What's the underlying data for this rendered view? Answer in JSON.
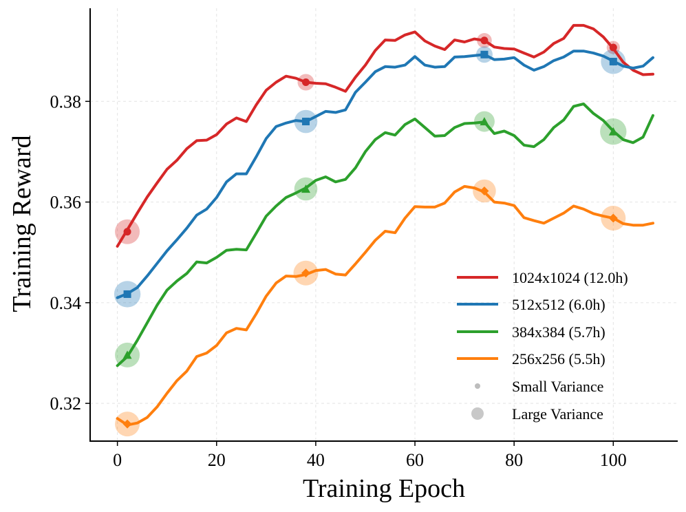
{
  "chart_data": {
    "type": "line",
    "xlabel": "Training Epoch",
    "ylabel": "Training Reward",
    "xlim": [
      -5.5,
      113
    ],
    "ylim": [
      0.3125,
      0.3985
    ],
    "xticks": [
      0,
      20,
      40,
      60,
      80,
      100
    ],
    "yticks": [
      0.32,
      0.34,
      0.36,
      0.38
    ],
    "xtick_labels": [
      "0",
      "20",
      "40",
      "60",
      "80",
      "100"
    ],
    "ytick_labels": [
      "0.32",
      "0.34",
      "0.36",
      "0.38"
    ],
    "grid": true,
    "legend_position": "lower-right",
    "series": [
      {
        "name": "1024x1024 (12.0h)",
        "color": "#d62728",
        "marker": "circle",
        "x": [
          0,
          2,
          4,
          6,
          8,
          10,
          12,
          14,
          16,
          18,
          20,
          22,
          24,
          26,
          28,
          30,
          32,
          34,
          36,
          38,
          40,
          42,
          44,
          46,
          48,
          50,
          52,
          54,
          56,
          58,
          60,
          62,
          64,
          66,
          68,
          70,
          72,
          74,
          76,
          78,
          80,
          82,
          84,
          86,
          88,
          90,
          92,
          94,
          96,
          98,
          100,
          102,
          104,
          106,
          108
        ],
        "values": [
          0.3512,
          0.3545,
          0.3578,
          0.361,
          0.3638,
          0.3665,
          0.3683,
          0.3706,
          0.3722,
          0.3723,
          0.3734,
          0.3755,
          0.3767,
          0.376,
          0.3793,
          0.3822,
          0.3838,
          0.385,
          0.3846,
          0.3838,
          0.3836,
          0.3835,
          0.3828,
          0.382,
          0.3848,
          0.3872,
          0.3901,
          0.3922,
          0.3921,
          0.3932,
          0.3938,
          0.392,
          0.391,
          0.3903,
          0.3922,
          0.3918,
          0.3924,
          0.3921,
          0.3908,
          0.3905,
          0.3904,
          0.3896,
          0.3888,
          0.3898,
          0.3915,
          0.3925,
          0.3951,
          0.3951,
          0.3944,
          0.3928,
          0.3905,
          0.3878,
          0.3862,
          0.3853,
          0.3854
        ],
        "markers": [
          {
            "x": 2,
            "y": 0.3541,
            "variance": 0.003
          },
          {
            "x": 38,
            "y": 0.3838,
            "variance": 0.002
          },
          {
            "x": 74,
            "y": 0.3921,
            "variance": 0.0018
          },
          {
            "x": 100,
            "y": 0.3907,
            "variance": 0.0016
          }
        ]
      },
      {
        "name": "512x512 (6.0h)",
        "color": "#1f77b4",
        "marker": "square",
        "x": [
          0,
          2,
          4,
          6,
          8,
          10,
          12,
          14,
          16,
          18,
          20,
          22,
          24,
          26,
          28,
          30,
          32,
          34,
          36,
          38,
          40,
          42,
          44,
          46,
          48,
          50,
          52,
          54,
          56,
          58,
          60,
          62,
          64,
          66,
          68,
          70,
          72,
          74,
          76,
          78,
          80,
          82,
          84,
          86,
          88,
          90,
          92,
          94,
          96,
          98,
          100,
          102,
          104,
          106,
          108
        ],
        "values": [
          0.341,
          0.3418,
          0.343,
          0.3453,
          0.3478,
          0.3503,
          0.3525,
          0.3548,
          0.3574,
          0.3586,
          0.3609,
          0.364,
          0.3656,
          0.3656,
          0.369,
          0.3726,
          0.375,
          0.3757,
          0.3762,
          0.376,
          0.377,
          0.378,
          0.3778,
          0.3783,
          0.3818,
          0.3838,
          0.3859,
          0.3869,
          0.3868,
          0.3872,
          0.3889,
          0.3872,
          0.3868,
          0.3869,
          0.3888,
          0.3889,
          0.3891,
          0.3893,
          0.3883,
          0.3884,
          0.3887,
          0.3872,
          0.3862,
          0.3869,
          0.3881,
          0.3888,
          0.39,
          0.39,
          0.3896,
          0.389,
          0.388,
          0.387,
          0.3866,
          0.387,
          0.3887
        ],
        "markers": [
          {
            "x": 2,
            "y": 0.3417,
            "variance": 0.0032
          },
          {
            "x": 38,
            "y": 0.376,
            "variance": 0.0028
          },
          {
            "x": 74,
            "y": 0.3893,
            "variance": 0.002
          },
          {
            "x": 100,
            "y": 0.3879,
            "variance": 0.003
          }
        ]
      },
      {
        "name": "384x384 (5.7h)",
        "color": "#2ca02c",
        "marker": "triangle",
        "x": [
          0,
          2,
          4,
          6,
          8,
          10,
          12,
          14,
          16,
          18,
          20,
          22,
          24,
          26,
          28,
          30,
          32,
          34,
          36,
          38,
          40,
          42,
          44,
          46,
          48,
          50,
          52,
          54,
          56,
          58,
          60,
          62,
          64,
          66,
          68,
          70,
          72,
          74,
          76,
          78,
          80,
          82,
          84,
          86,
          88,
          90,
          92,
          94,
          96,
          98,
          100,
          102,
          104,
          106,
          108
        ],
        "values": [
          0.3275,
          0.3293,
          0.3325,
          0.336,
          0.3395,
          0.3425,
          0.3443,
          0.3458,
          0.3481,
          0.3479,
          0.349,
          0.3504,
          0.3506,
          0.3505,
          0.3538,
          0.3572,
          0.3592,
          0.3609,
          0.3618,
          0.3628,
          0.3643,
          0.365,
          0.364,
          0.3645,
          0.3668,
          0.37,
          0.3724,
          0.3738,
          0.3733,
          0.3754,
          0.3765,
          0.3748,
          0.3731,
          0.3732,
          0.3748,
          0.3756,
          0.3757,
          0.3759,
          0.3736,
          0.3741,
          0.3732,
          0.3713,
          0.371,
          0.3724,
          0.3748,
          0.3763,
          0.379,
          0.3795,
          0.3776,
          0.3762,
          0.3741,
          0.3724,
          0.3718,
          0.3729,
          0.3772
        ],
        "markers": [
          {
            "x": 2,
            "y": 0.3296,
            "variance": 0.003
          },
          {
            "x": 38,
            "y": 0.3626,
            "variance": 0.0028
          },
          {
            "x": 74,
            "y": 0.376,
            "variance": 0.0025
          },
          {
            "x": 100,
            "y": 0.374,
            "variance": 0.0032
          }
        ]
      },
      {
        "name": "256x256 (5.5h)",
        "color": "#ff7f0e",
        "marker": "diamond",
        "x": [
          0,
          2,
          4,
          6,
          8,
          10,
          12,
          14,
          16,
          18,
          20,
          22,
          24,
          26,
          28,
          30,
          32,
          34,
          36,
          38,
          40,
          42,
          44,
          46,
          48,
          50,
          52,
          54,
          56,
          58,
          60,
          62,
          64,
          66,
          68,
          70,
          72,
          74,
          76,
          78,
          80,
          82,
          84,
          86,
          88,
          90,
          92,
          94,
          96,
          98,
          100,
          102,
          104,
          106,
          108
        ],
        "values": [
          0.317,
          0.3157,
          0.3161,
          0.3172,
          0.3193,
          0.322,
          0.3245,
          0.3264,
          0.3293,
          0.33,
          0.3315,
          0.334,
          0.3349,
          0.3346,
          0.3378,
          0.3413,
          0.3439,
          0.3453,
          0.3452,
          0.3456,
          0.3464,
          0.3466,
          0.3457,
          0.3455,
          0.3477,
          0.35,
          0.3524,
          0.3542,
          0.3539,
          0.3568,
          0.3591,
          0.359,
          0.359,
          0.3598,
          0.362,
          0.3631,
          0.3628,
          0.362,
          0.36,
          0.3598,
          0.3593,
          0.3569,
          0.3563,
          0.3558,
          0.3568,
          0.3578,
          0.3592,
          0.3586,
          0.3577,
          0.3572,
          0.3568,
          0.3557,
          0.3554,
          0.3554,
          0.3558
        ],
        "markers": [
          {
            "x": 2,
            "y": 0.3159,
            "variance": 0.003
          },
          {
            "x": 38,
            "y": 0.3459,
            "variance": 0.003
          },
          {
            "x": 74,
            "y": 0.3622,
            "variance": 0.0028
          },
          {
            "x": 100,
            "y": 0.3568,
            "variance": 0.003
          }
        ]
      }
    ],
    "size_legend": [
      {
        "label": "Small Variance",
        "variance": "small"
      },
      {
        "label": "Large Variance",
        "variance": "large"
      }
    ]
  }
}
